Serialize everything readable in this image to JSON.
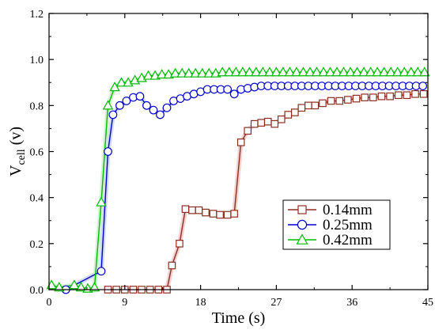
{
  "chart_data": {
    "type": "line",
    "xlabel": "Time (s)",
    "ylabel_main": "V",
    "ylabel_sub": "cell",
    "ylabel_unit": "(v)",
    "xlim": [
      0,
      45
    ],
    "ylim": [
      0,
      1.2
    ],
    "xticks": [
      0,
      9,
      18,
      27,
      36,
      45
    ],
    "yticks": [
      0.0,
      0.2,
      0.4,
      0.6,
      0.8,
      1.0,
      1.2
    ],
    "xtick_labels": [
      "0",
      "9",
      "18",
      "27",
      "36",
      "45"
    ],
    "ytick_labels": [
      "0.0",
      "0.2",
      "0.4",
      "0.6",
      "0.8",
      "1.0",
      "1.2"
    ],
    "grid": false,
    "legend_position": "lower-right",
    "series": [
      {
        "name": "0.14mm",
        "marker": "square",
        "color": "#8B2E1E",
        "halo": "#F2C6C6",
        "x": [
          7,
          8,
          9,
          10,
          11,
          12,
          13,
          14,
          14.6,
          15.5,
          16.2,
          17,
          17.8,
          18.6,
          19.5,
          20.3,
          21.2,
          22,
          22.8,
          23.6,
          24.4,
          25.2,
          26,
          26.8,
          27.6,
          28.4,
          29.2,
          30,
          30.8,
          31.6,
          32.5,
          33.5,
          34.5,
          35.5,
          36.5,
          37.5,
          38.5,
          39.5,
          40.5,
          41.5,
          42.5,
          43.5,
          44.5
        ],
        "y": [
          0,
          0,
          0,
          0,
          0,
          0,
          0,
          0,
          0.105,
          0.2,
          0.35,
          0.345,
          0.345,
          0.335,
          0.33,
          0.325,
          0.325,
          0.33,
          0.64,
          0.69,
          0.72,
          0.725,
          0.73,
          0.72,
          0.74,
          0.76,
          0.77,
          0.79,
          0.8,
          0.8,
          0.81,
          0.82,
          0.82,
          0.825,
          0.83,
          0.835,
          0.835,
          0.84,
          0.84,
          0.845,
          0.845,
          0.85,
          0.85
        ]
      },
      {
        "name": "0.25mm",
        "marker": "circle",
        "color": "#0000CC",
        "halo": "#C4D2F2",
        "x": [
          2,
          6.2,
          7,
          7.6,
          8.4,
          9.2,
          10,
          10.8,
          11.6,
          12.4,
          13.2,
          14,
          14.8,
          15.6,
          16.4,
          17.2,
          18,
          18.8,
          19.6,
          20.4,
          21.2,
          22,
          22.8,
          23.6,
          24.4,
          25.2,
          26,
          26.8,
          27.6,
          28.4,
          29.2,
          30,
          30.8,
          31.6,
          32.4,
          33.2,
          34,
          34.8,
          35.6,
          36.4,
          37.2,
          38,
          38.8,
          39.6,
          40.4,
          41.2,
          42,
          42.8,
          43.6,
          44.4
        ],
        "y": [
          0,
          0.08,
          0.6,
          0.76,
          0.8,
          0.82,
          0.835,
          0.84,
          0.8,
          0.78,
          0.76,
          0.79,
          0.82,
          0.83,
          0.84,
          0.85,
          0.86,
          0.87,
          0.87,
          0.87,
          0.87,
          0.85,
          0.87,
          0.875,
          0.88,
          0.885,
          0.885,
          0.885,
          0.885,
          0.885,
          0.885,
          0.885,
          0.885,
          0.885,
          0.885,
          0.885,
          0.885,
          0.885,
          0.885,
          0.885,
          0.885,
          0.885,
          0.885,
          0.885,
          0.885,
          0.885,
          0.885,
          0.885,
          0.885,
          0.885
        ]
      },
      {
        "name": "0.42mm",
        "marker": "triangle",
        "color": "#00BB00",
        "halo": "#C8EFC8",
        "x": [
          0.3,
          1.2,
          3,
          3.8,
          4.6,
          5.4,
          6.2,
          7,
          7.8,
          8.6,
          9.4,
          10.2,
          11,
          11.8,
          12.6,
          13.4,
          14.2,
          15,
          15.8,
          16.6,
          17.4,
          18.2,
          19,
          19.8,
          20.6,
          21.4,
          22.2,
          23,
          23.8,
          24.6,
          25.4,
          26.2,
          27,
          27.8,
          28.6,
          29.4,
          30.2,
          31,
          31.8,
          32.6,
          33.4,
          34.2,
          35,
          35.8,
          36.6,
          37.4,
          38.2,
          39,
          39.8,
          40.6,
          41.4,
          42.2,
          43,
          43.8,
          44.6
        ],
        "y": [
          0.02,
          0.01,
          0.02,
          0.01,
          0.005,
          0.01,
          0.38,
          0.8,
          0.88,
          0.9,
          0.9,
          0.91,
          0.92,
          0.93,
          0.93,
          0.935,
          0.935,
          0.94,
          0.94,
          0.94,
          0.94,
          0.94,
          0.94,
          0.94,
          0.945,
          0.945,
          0.945,
          0.945,
          0.945,
          0.945,
          0.945,
          0.945,
          0.945,
          0.945,
          0.945,
          0.945,
          0.945,
          0.945,
          0.945,
          0.945,
          0.945,
          0.945,
          0.945,
          0.945,
          0.945,
          0.945,
          0.945,
          0.945,
          0.945,
          0.945,
          0.945,
          0.945,
          0.945,
          0.945,
          0.945
        ]
      }
    ]
  }
}
